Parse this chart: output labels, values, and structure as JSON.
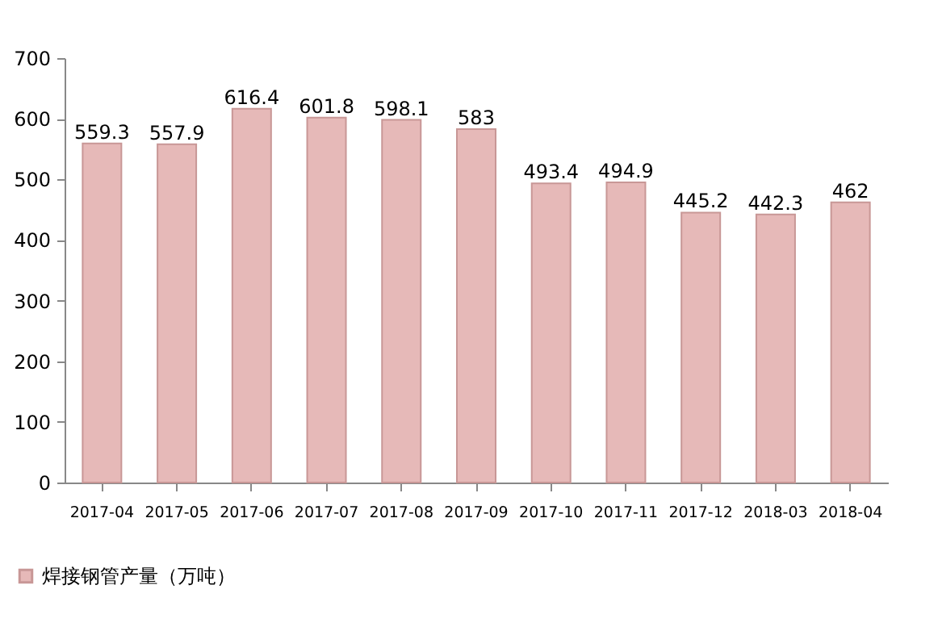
{
  "chart_data": {
    "type": "bar",
    "categories": [
      "2017-04",
      "2017-05",
      "2017-06",
      "2017-07",
      "2017-08",
      "2017-09",
      "2017-10",
      "2017-11",
      "2017-12",
      "2018-03",
      "2018-04"
    ],
    "series": [
      {
        "name": "焊接钢管产量（万吨）",
        "color": "#e6b9b8",
        "values": [
          559.3,
          557.9,
          616.4,
          601.8,
          598.1,
          583,
          493.4,
          494.9,
          445.2,
          442.3,
          462
        ]
      }
    ],
    "ylim": [
      0,
      700
    ],
    "yticks": [
      0,
      100,
      200,
      300,
      400,
      500,
      600,
      700
    ],
    "data_labels": true,
    "grid": false,
    "legend": "bottom left"
  }
}
